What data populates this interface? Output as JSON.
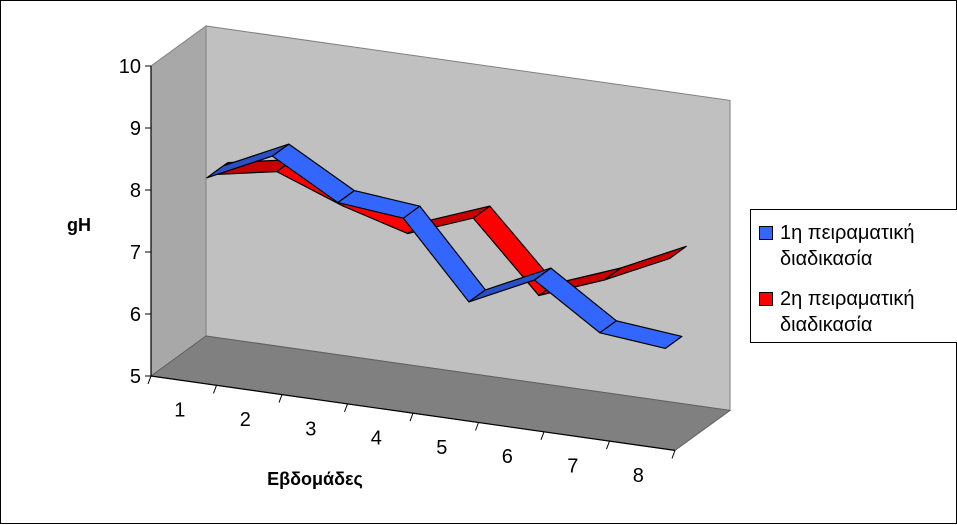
{
  "chart_data": {
    "type": "line",
    "variant": "3d",
    "title": "",
    "xlabel": "Εβδομάδες",
    "ylabel": "gH",
    "categories": [
      "1",
      "2",
      "3",
      "4",
      "5",
      "6",
      "7",
      "8"
    ],
    "ylim": [
      5,
      10
    ],
    "yticks": [
      "5",
      "6",
      "7",
      "8",
      "9",
      "10"
    ],
    "series": [
      {
        "name": "1η πειραματική διαδικασία",
        "color": "#3366FF",
        "values": [
          8.0,
          8.5,
          7.9,
          7.8,
          6.6,
          7.1,
          6.4,
          6.3
        ]
      },
      {
        "name": "2η πειραματική διαδικασία",
        "color": "#FF0000",
        "values": [
          8.0,
          8.2,
          7.8,
          7.5,
          7.9,
          6.8,
          7.2,
          7.7
        ]
      }
    ],
    "grid": false,
    "legend_position": "right",
    "wall_color": "#C0C0C0",
    "floor_color": "#808080"
  }
}
